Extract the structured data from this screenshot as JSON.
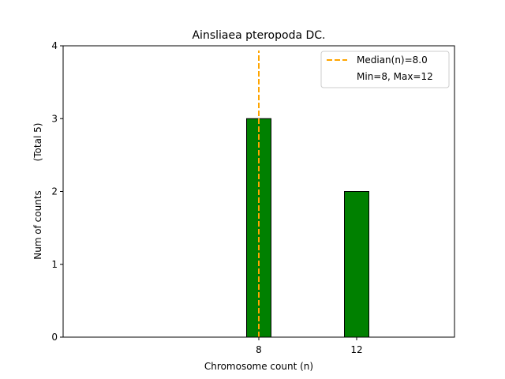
{
  "chart_data": {
    "type": "bar",
    "title": "Ainsliaea pteropoda DC.",
    "xlabel": "Chromosome count (n)",
    "ylabel": "Num of counts",
    "ylabel_total": "(Total 5)",
    "categories": [
      "8",
      "12"
    ],
    "x": [
      8,
      12
    ],
    "values": [
      3,
      2
    ],
    "xlim": [
      0,
      16
    ],
    "ylim": [
      0,
      4
    ],
    "yticks": [
      0,
      1,
      2,
      3,
      4
    ],
    "median": 8.0,
    "legend": {
      "placement": "top-right",
      "median_label": "Median(n)=8.0",
      "range_label": "Min=8, Max=12"
    },
    "colors": {
      "bar_fill": "#008000",
      "bar_edge": "#000000",
      "median_line": "#FFA500"
    },
    "grid": false
  }
}
